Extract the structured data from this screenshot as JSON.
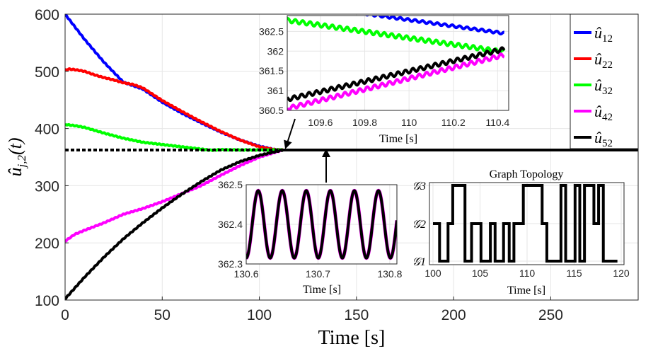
{
  "chart_data": {
    "type": "line",
    "main": {
      "xlabel": "Time [s]",
      "ylabel": "û_{j,2}(t)",
      "xlim": [
        0,
        295
      ],
      "ylim": [
        100,
        600
      ],
      "xticks": [
        0,
        50,
        100,
        150,
        200,
        250
      ],
      "yticks": [
        100,
        200,
        300,
        400,
        500,
        600
      ],
      "grid": true,
      "consensus_value": 362.4,
      "legend_position": "top-right",
      "series": [
        {
          "name": "û12",
          "color": "#0000ff",
          "x": [
            0,
            10,
            20,
            30,
            40,
            50,
            60,
            70,
            80,
            90,
            100,
            108,
            112
          ],
          "y": [
            600,
            556,
            516,
            481,
            469,
            446,
            427,
            410,
            394,
            380,
            369,
            363,
            362.4
          ]
        },
        {
          "name": "û22",
          "color": "#ff0000",
          "x": [
            0,
            2,
            5,
            10,
            15,
            20,
            25,
            30,
            35,
            40,
            50,
            60,
            70,
            80,
            90,
            100,
            108,
            112
          ],
          "y": [
            502,
            504,
            503,
            500,
            494,
            489,
            485,
            480,
            477,
            471,
            449,
            430,
            412,
            395,
            380,
            368,
            363,
            362.4
          ]
        },
        {
          "name": "û32",
          "color": "#00ff00",
          "x": [
            0,
            5,
            10,
            20,
            30,
            40,
            50,
            60,
            70,
            75,
            80,
            90,
            100,
            110,
            112
          ],
          "y": [
            407,
            405,
            402,
            392,
            383,
            376,
            372,
            368,
            364,
            362,
            363,
            362.5,
            362.6,
            362.5,
            362.4
          ]
        },
        {
          "name": "û42",
          "color": "#ff00ff",
          "x": [
            0,
            5,
            10,
            20,
            30,
            40,
            50,
            60,
            70,
            80,
            90,
            100,
            112
          ],
          "y": [
            203,
            215,
            222,
            235,
            250,
            260,
            272,
            286,
            300,
            318,
            335,
            350,
            362.4
          ]
        },
        {
          "name": "û52",
          "color": "#000000",
          "x": [
            0,
            10,
            20,
            30,
            40,
            50,
            60,
            70,
            80,
            90,
            100,
            112
          ],
          "y": [
            102,
            140,
            175,
            207,
            235,
            261,
            285,
            307,
            327,
            342,
            353,
            362.4
          ]
        }
      ]
    },
    "inset_top": {
      "xlabel": "Time [s]",
      "xlim": [
        109.45,
        110.45
      ],
      "ylim": [
        360.5,
        362.9
      ],
      "xticks": [
        109.6,
        109.8,
        110,
        110.2,
        110.4
      ],
      "xtick_labels": [
        "109.6",
        "109.8",
        "110",
        "110.2",
        "110.4"
      ],
      "yticks": [
        360.5,
        361,
        361.5,
        362,
        362.5
      ],
      "ytick_labels": [
        "360.5",
        "361",
        "361.5",
        "362",
        "362.5"
      ],
      "series": [
        {
          "name": "û12",
          "color": "#0000ff",
          "x": [
            109.8,
            110.43
          ],
          "y": [
            362.95,
            362.45
          ],
          "osc": 0.03
        },
        {
          "name": "û32",
          "color": "#00ff00",
          "x": [
            109.45,
            110.43
          ],
          "y": [
            362.78,
            361.98
          ],
          "osc": 0.05
        },
        {
          "name": "û52",
          "color": "#000000",
          "x": [
            109.45,
            110.43
          ],
          "y": [
            360.78,
            362.05
          ],
          "osc": 0.05
        },
        {
          "name": "û42",
          "color": "#ff00ff",
          "x": [
            109.45,
            110.43
          ],
          "y": [
            360.55,
            361.9
          ],
          "osc": 0.05
        }
      ]
    },
    "inset_bottom": {
      "xlabel": "Time [s]",
      "xlim": [
        130.6,
        130.81
      ],
      "ylim": [
        362.3,
        362.5
      ],
      "xticks": [
        130.6,
        130.7,
        130.8
      ],
      "xtick_labels": [
        "130.6",
        "130.7",
        "130.8"
      ],
      "yticks": [
        362.3,
        362.4,
        362.5
      ],
      "ytick_labels": [
        "362.3",
        "362.4",
        "362.5"
      ],
      "series": [
        {
          "name": "û42",
          "color": "#ff00ff",
          "center": 362.4,
          "amplitude": 0.085,
          "period": 0.0335
        },
        {
          "name": "û52",
          "color": "#000000",
          "center": 362.4,
          "amplitude": 0.085,
          "period": 0.0335
        }
      ]
    },
    "inset_graph": {
      "title": "Graph Topology",
      "xlabel": "Time [s]",
      "xlim": [
        100,
        120
      ],
      "xticks": [
        100,
        105,
        110,
        115,
        120
      ],
      "ylevels": [
        "G1",
        "G2",
        "G3"
      ],
      "ytick_labels": [
        "𝒢1",
        "𝒢2",
        "𝒢3"
      ],
      "steps": [
        {
          "x": 100,
          "level": 2
        },
        {
          "x": 100.7,
          "level": 1
        },
        {
          "x": 101.6,
          "level": 2
        },
        {
          "x": 102.1,
          "level": 3
        },
        {
          "x": 103.4,
          "level": 1
        },
        {
          "x": 104.1,
          "level": 2
        },
        {
          "x": 105.1,
          "level": 1
        },
        {
          "x": 106.1,
          "level": 2
        },
        {
          "x": 106.6,
          "level": 1
        },
        {
          "x": 107.5,
          "level": 2
        },
        {
          "x": 108.1,
          "level": 1
        },
        {
          "x": 108.6,
          "level": 2
        },
        {
          "x": 109.6,
          "level": 3
        },
        {
          "x": 111.6,
          "level": 2
        },
        {
          "x": 112.1,
          "level": 1
        },
        {
          "x": 113.6,
          "level": 3
        },
        {
          "x": 114.1,
          "level": 1
        },
        {
          "x": 115.1,
          "level": 3
        },
        {
          "x": 115.6,
          "level": 1
        },
        {
          "x": 116.1,
          "level": 3
        },
        {
          "x": 117.1,
          "level": 2
        },
        {
          "x": 117.6,
          "level": 3
        },
        {
          "x": 118.1,
          "level": 1
        },
        {
          "x": 119.6,
          "level": 1
        }
      ]
    }
  }
}
